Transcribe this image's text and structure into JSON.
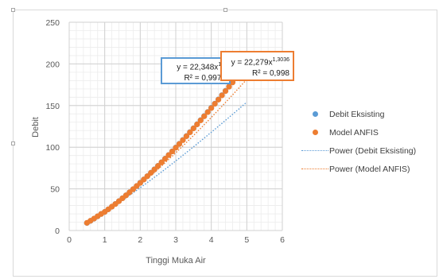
{
  "chart_data": {
    "type": "scatter",
    "xlabel": "Tinggi Muka Air",
    "ylabel": "Debit",
    "xlim": [
      0,
      6
    ],
    "ylim": [
      0,
      250
    ],
    "x_ticks": [
      "0",
      "1",
      "2",
      "3",
      "4",
      "5",
      "6"
    ],
    "y_ticks": [
      "0",
      "50",
      "100",
      "150",
      "200",
      "250"
    ],
    "grid": true,
    "legend_position": "right",
    "series": [
      {
        "name": "Debit Eksisting",
        "marker": "circle",
        "color": "#5b9bd5",
        "x": [
          0.5,
          0.6,
          0.7,
          0.8,
          0.9,
          1.0,
          1.1,
          1.2,
          1.3,
          1.4,
          1.5,
          1.6,
          1.7,
          1.8,
          1.9,
          2.0,
          2.1,
          2.2,
          2.3,
          2.4,
          2.5,
          2.6,
          2.7,
          2.8,
          2.9,
          3.0,
          3.1,
          3.2,
          3.3,
          3.4,
          3.5,
          3.6,
          3.7,
          3.8,
          3.9,
          4.0,
          4.1,
          4.2,
          4.3,
          4.4,
          4.5,
          4.6,
          4.7,
          4.8,
          4.9,
          5.0
        ],
        "y": [
          9.1,
          11.6,
          14.2,
          17.0,
          19.9,
          22.3,
          25.4,
          28.6,
          31.9,
          35.3,
          38.8,
          42.3,
          46.0,
          49.7,
          53.5,
          57.4,
          61.3,
          65.3,
          69.4,
          73.5,
          77.7,
          82.0,
          86.3,
          90.7,
          95.1,
          99.6,
          104.1,
          108.7,
          113.4,
          118.1,
          122.8,
          127.6,
          132.5,
          137.4,
          142.3,
          147.3,
          152.3,
          157.4,
          162.5,
          167.7,
          172.9,
          178.2,
          183.5,
          188.8,
          194.2,
          199.6
        ]
      },
      {
        "name": "Model ANFIS",
        "marker": "circle",
        "color": "#ed7d31",
        "x": [
          0.5,
          0.6,
          0.7,
          0.8,
          0.9,
          1.0,
          1.1,
          1.2,
          1.3,
          1.4,
          1.5,
          1.6,
          1.7,
          1.8,
          1.9,
          2.0,
          2.1,
          2.2,
          2.3,
          2.4,
          2.5,
          2.6,
          2.7,
          2.8,
          2.9,
          3.0,
          3.1,
          3.2,
          3.3,
          3.4,
          3.5,
          3.6,
          3.7,
          3.8,
          3.9,
          4.0,
          4.1,
          4.2,
          4.3,
          4.4,
          4.5,
          4.6,
          4.7,
          4.8,
          4.9,
          5.0
        ],
        "y": [
          9.2,
          11.7,
          14.3,
          17.1,
          19.9,
          22.3,
          25.4,
          28.6,
          31.8,
          35.2,
          38.7,
          42.2,
          45.9,
          49.6,
          53.4,
          57.2,
          61.2,
          65.2,
          69.2,
          73.3,
          77.5,
          81.8,
          86.1,
          90.5,
          94.9,
          99.4,
          103.9,
          108.5,
          113.2,
          117.9,
          122.6,
          127.4,
          132.2,
          137.1,
          142.1,
          147.0,
          152.1,
          157.1,
          162.2,
          167.4,
          172.6,
          177.8,
          183.1,
          188.4,
          193.8,
          199.2
        ]
      },
      {
        "name": "Power (Debit Eksisting)",
        "type": "line",
        "style": "dotted",
        "color": "#5b9bd5",
        "coefficient": 22.348,
        "exponent": 1.2
      },
      {
        "name": "Power (Model ANFIS)",
        "type": "line",
        "style": "dotted",
        "color": "#ed7d31",
        "coefficient": 22.279,
        "exponent": 1.3036
      }
    ],
    "annotations": [
      {
        "name": "trendline-label-debit-eksisting",
        "equation_prefix": "y = 22,348x",
        "equation_exponent": "1,2",
        "r2": "R² = 0,9973",
        "border_color": "#5b9bd5"
      },
      {
        "name": "trendline-label-model-anfis",
        "equation_prefix": "y = 22,279x",
        "equation_exponent": "1,3036",
        "r2": "R² = 0,998",
        "border_color": "#ed7d31"
      }
    ]
  }
}
